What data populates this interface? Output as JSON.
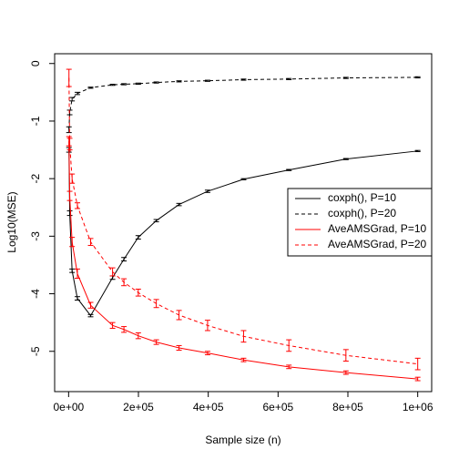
{
  "chart_data": {
    "type": "line",
    "x_label": "Sample size (n)",
    "y_label": "Log10(MSE)",
    "x": [
      1000,
      3162,
      10000,
      25119,
      63096,
      125893,
      158489,
      199526,
      251189,
      316228,
      398107,
      501187,
      630957,
      794328,
      1000000
    ],
    "series": [
      {
        "name": "coxph(), P=10",
        "color": "#000000",
        "linestyle": "solid",
        "values": [
          -1.5,
          -2.6,
          -3.6,
          -4.08,
          -4.38,
          -3.72,
          -3.4,
          -3.02,
          -2.73,
          -2.45,
          -2.22,
          -2.01,
          -1.85,
          -1.66,
          -1.52
        ],
        "errors": [
          0.04,
          0.04,
          0.03,
          0.03,
          0.02,
          0.03,
          0.03,
          0.03,
          0.02,
          0.02,
          0.02,
          0.01,
          0.01,
          0.01,
          0.01
        ]
      },
      {
        "name": "coxph(), P=20",
        "color": "#000000",
        "linestyle": "dashed",
        "values": [
          -1.15,
          -0.85,
          -0.62,
          -0.52,
          -0.42,
          -0.37,
          -0.36,
          -0.35,
          -0.33,
          -0.31,
          -0.3,
          -0.28,
          -0.27,
          -0.25,
          -0.24
        ],
        "errors": [
          0.05,
          0.04,
          0.03,
          0.02,
          0.01,
          0.01,
          0.01,
          0.01,
          0.01,
          0.01,
          0.01,
          0.01,
          0.01,
          0.01,
          0.01
        ]
      },
      {
        "name": "AveAMSGrad, P=10",
        "color": "#ff0000",
        "linestyle": "solid",
        "values": [
          -1.35,
          -2.3,
          -3.1,
          -3.65,
          -4.2,
          -4.55,
          -4.62,
          -4.73,
          -4.84,
          -4.94,
          -5.03,
          -5.15,
          -5.27,
          -5.37,
          -5.48
        ],
        "errors": [
          0.08,
          0.08,
          0.08,
          0.08,
          0.05,
          0.05,
          0.05,
          0.05,
          0.04,
          0.04,
          0.03,
          0.03,
          0.03,
          0.03,
          0.03
        ]
      },
      {
        "name": "AveAMSGrad, P=20",
        "color": "#ff0000",
        "linestyle": "dashed",
        "values": [
          -0.25,
          -1.4,
          -2.0,
          -2.47,
          -3.1,
          -3.62,
          -3.8,
          -3.98,
          -4.17,
          -4.37,
          -4.55,
          -4.74,
          -4.9,
          -5.07,
          -5.22
        ],
        "errors": [
          0.15,
          0.1,
          0.08,
          0.05,
          0.06,
          0.07,
          0.06,
          0.06,
          0.07,
          0.08,
          0.09,
          0.1,
          0.1,
          0.1,
          0.1
        ]
      }
    ],
    "xlim": [
      -40000,
      1040000
    ],
    "xticks": [
      {
        "value": 0,
        "label": "0e+00"
      },
      {
        "value": 200000,
        "label": "2e+05"
      },
      {
        "value": 400000,
        "label": "4e+05"
      },
      {
        "value": 600000,
        "label": "6e+05"
      },
      {
        "value": 800000,
        "label": "8e+05"
      },
      {
        "value": 1000000,
        "label": "1e+06"
      }
    ],
    "ylim": [
      -5.7,
      0.17
    ],
    "yticks": [
      0,
      -1,
      -2,
      -3,
      -4,
      -5
    ],
    "legend": "right"
  }
}
